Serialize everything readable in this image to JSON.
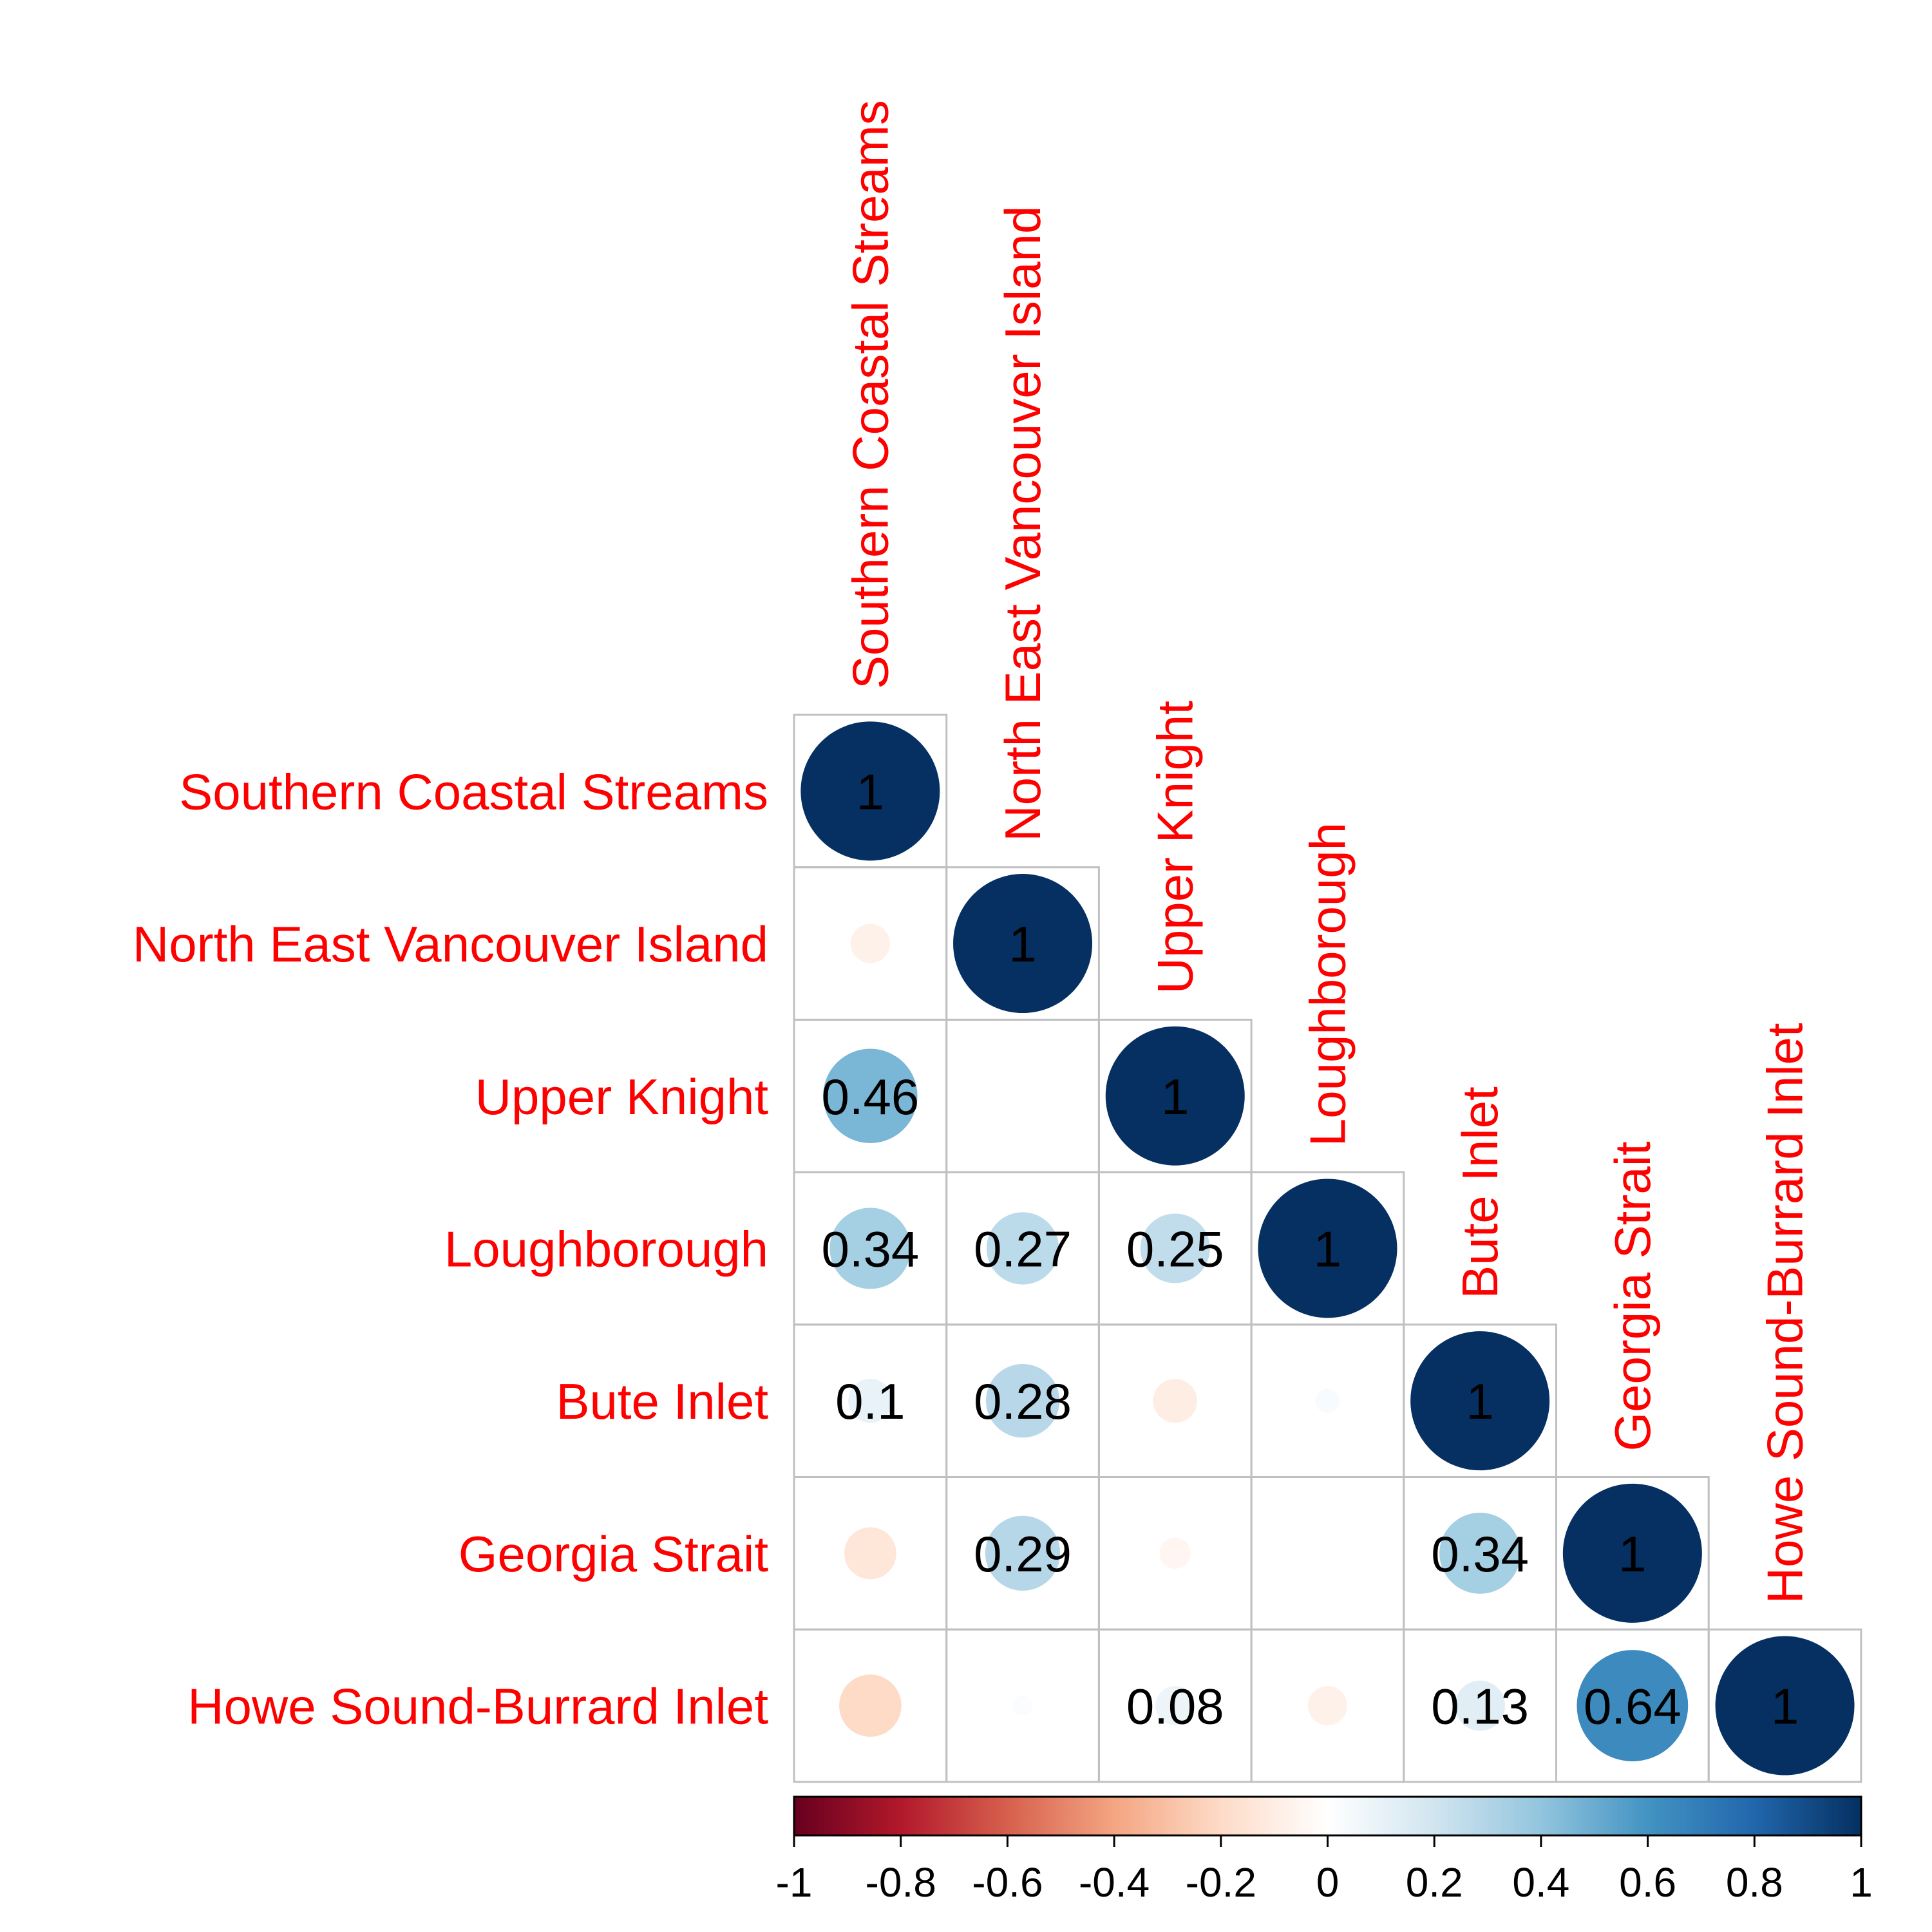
{
  "chart_data": {
    "type": "heatmap",
    "variables": [
      "Southern Coastal Streams",
      "North East Vancouver Island",
      "Upper Knight",
      "Loughborough",
      "Bute Inlet",
      "Georgia Strait",
      "Howe Sound-Burrard Inlet"
    ],
    "matrix": [
      [
        1
      ],
      [
        -0.08,
        1
      ],
      [
        0.46,
        0.0,
        1
      ],
      [
        0.34,
        0.27,
        0.25,
        1
      ],
      [
        0.1,
        0.28,
        -0.1,
        0.03,
        1
      ],
      [
        -0.14,
        0.29,
        -0.05,
        0.0,
        0.34,
        1
      ],
      [
        -0.2,
        0.02,
        0.08,
        -0.08,
        0.13,
        0.64,
        1
      ]
    ],
    "shown_labels": [
      [
        "1"
      ],
      [
        "",
        "1"
      ],
      [
        "0.46",
        "",
        "1"
      ],
      [
        "0.34",
        "0.27",
        "0.25",
        "1"
      ],
      [
        "0.1",
        "0.28",
        "",
        "",
        "1"
      ],
      [
        "",
        "0.29",
        "",
        "",
        "0.34",
        "1"
      ],
      [
        "",
        "",
        "0.08",
        "",
        "0.13",
        "0.64",
        "1"
      ]
    ],
    "colorbar": {
      "range": [
        -1,
        1
      ],
      "ticks": [
        "-1",
        "-0.8",
        "-0.6",
        "-0.4",
        "-0.2",
        "0",
        "0.2",
        "0.4",
        "0.6",
        "0.8",
        "1"
      ]
    },
    "colors": {
      "label": "#ff0000",
      "grid": "#c0c0c0",
      "negative_end": "#67001f",
      "positive_end": "#053061"
    }
  }
}
